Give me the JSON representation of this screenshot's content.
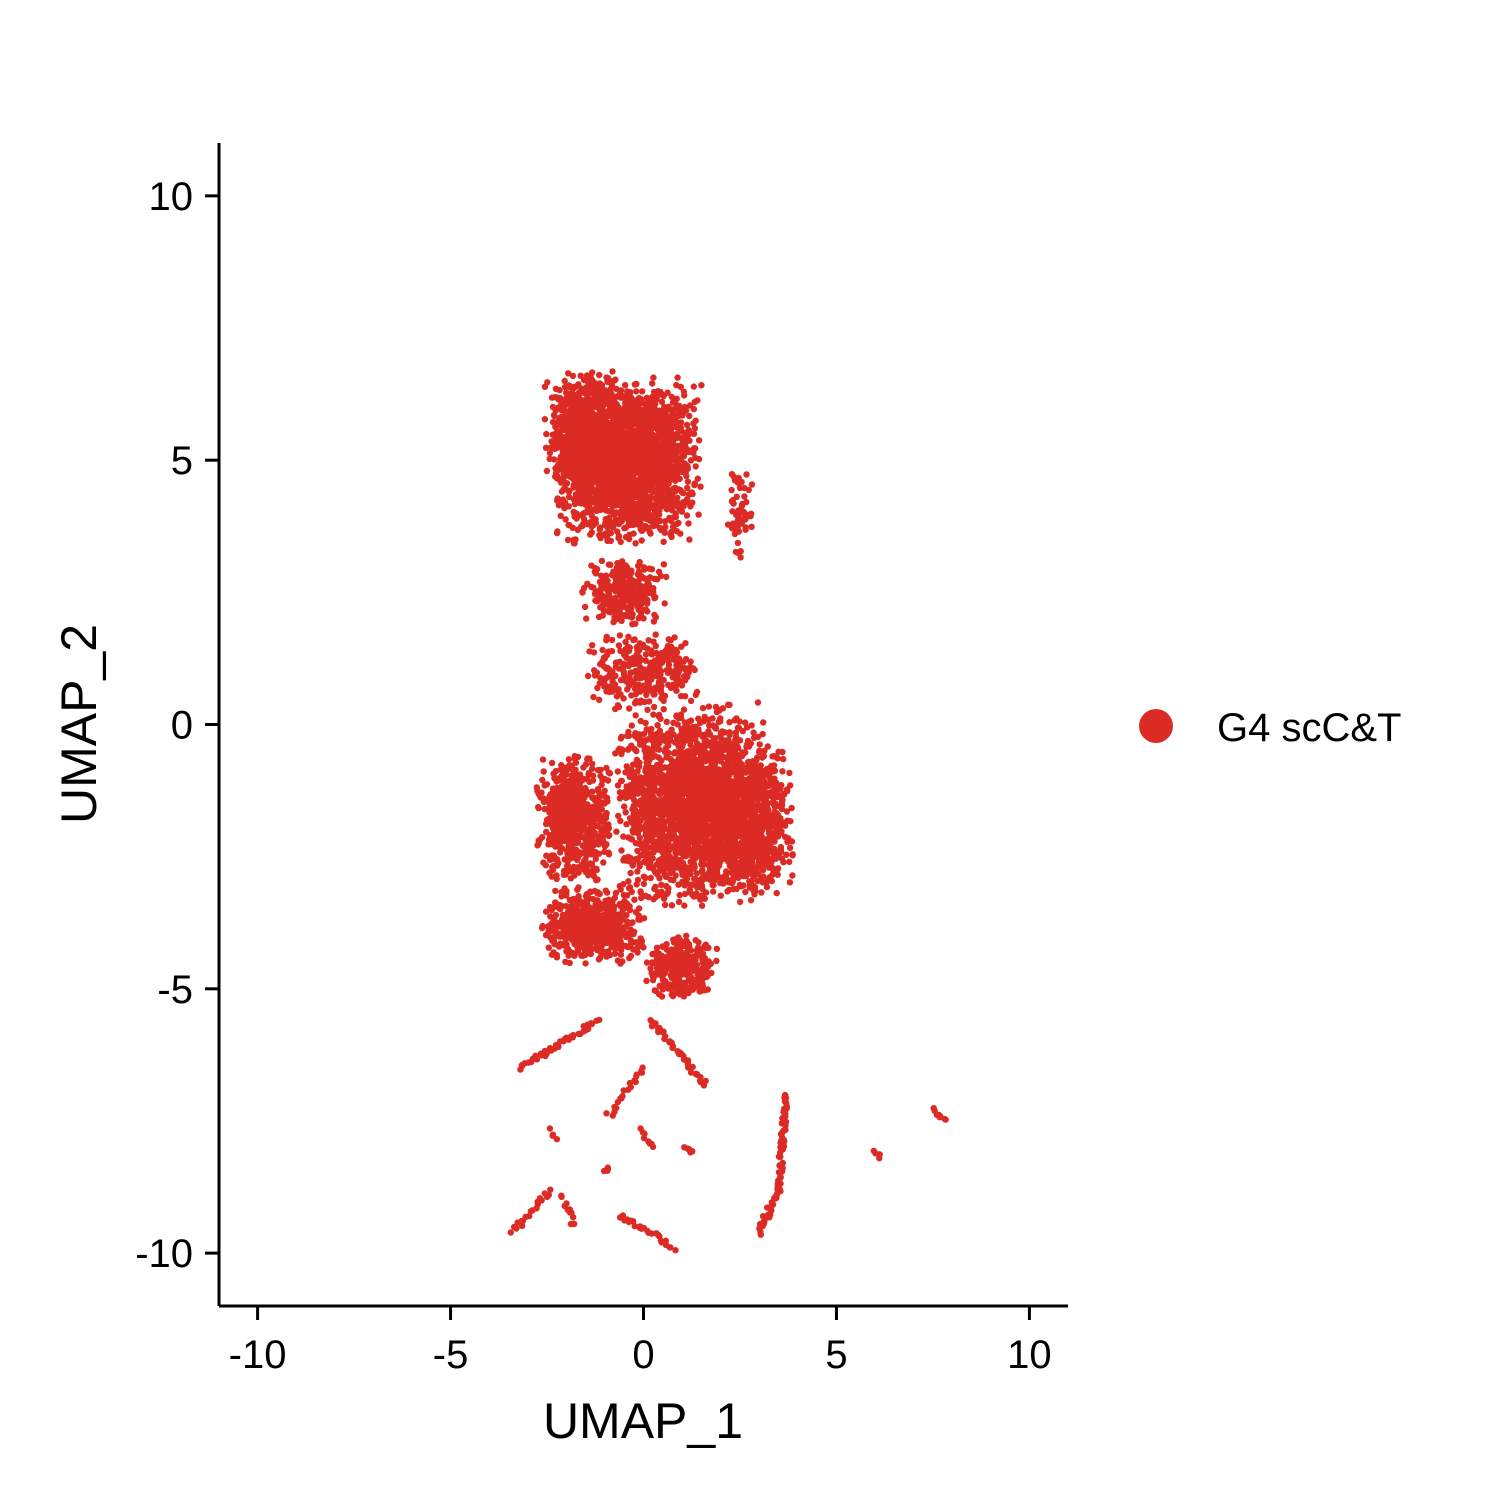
{
  "chart_data": {
    "type": "scatter",
    "title": "",
    "xlabel": "UMAP_1",
    "ylabel": "UMAP_2",
    "xlim": [
      -11,
      11
    ],
    "ylim": [
      -11,
      11
    ],
    "xticks": [
      -10,
      -5,
      0,
      5,
      10
    ],
    "yticks": [
      -10,
      -5,
      0,
      5,
      10
    ],
    "xtick_labels": [
      "-10",
      "-5",
      "0",
      "5",
      "10"
    ],
    "ytick_labels": [
      "-10",
      "-5",
      "0",
      "5",
      "10"
    ],
    "grid": false,
    "legend_position": "right",
    "point_color": "#dc2b25",
    "series": [
      {
        "name": "G4 scC&T",
        "clusters": [
          {
            "center": [
              -0.4,
              5.0
            ],
            "spread": [
              1.6,
              1.3
            ],
            "n": 2200
          },
          {
            "center": [
              -1.6,
              5.6
            ],
            "spread": [
              0.8,
              0.9
            ],
            "n": 500
          },
          {
            "center": [
              -0.5,
              2.5
            ],
            "spread": [
              0.9,
              0.5
            ],
            "n": 300
          },
          {
            "center": [
              0.0,
              1.0
            ],
            "spread": [
              1.3,
              0.6
            ],
            "n": 300
          },
          {
            "center": [
              -1.8,
              -1.8
            ],
            "spread": [
              0.8,
              1.0
            ],
            "n": 700
          },
          {
            "center": [
              1.2,
              -1.5
            ],
            "spread": [
              1.6,
              1.6
            ],
            "n": 2000
          },
          {
            "center": [
              2.8,
              -1.8
            ],
            "spread": [
              0.9,
              1.2
            ],
            "n": 800
          },
          {
            "center": [
              -1.3,
              -3.8
            ],
            "spread": [
              1.1,
              0.6
            ],
            "n": 600
          },
          {
            "center": [
              1.0,
              -4.6
            ],
            "spread": [
              0.8,
              0.5
            ],
            "n": 300
          },
          {
            "center": [
              2.5,
              4.0
            ],
            "spread": [
              0.3,
              0.7
            ],
            "n": 60
          }
        ],
        "strands": [
          {
            "from": [
              -3.2,
              -6.5
            ],
            "to": [
              -1.2,
              -5.6
            ],
            "n": 40
          },
          {
            "from": [
              0.2,
              -5.6
            ],
            "to": [
              1.6,
              -6.8
            ],
            "n": 40
          },
          {
            "from": [
              -0.9,
              -7.4
            ],
            "to": [
              0.0,
              -6.5
            ],
            "n": 20
          },
          {
            "from": [
              3.7,
              -7.0
            ],
            "to": [
              3.5,
              -8.8
            ],
            "n": 50
          },
          {
            "from": [
              3.5,
              -8.8
            ],
            "to": [
              3.0,
              -9.6
            ],
            "n": 30
          },
          {
            "from": [
              -0.6,
              -9.3
            ],
            "to": [
              0.8,
              -9.9
            ],
            "n": 25
          },
          {
            "from": [
              -3.4,
              -9.6
            ],
            "to": [
              -2.4,
              -8.8
            ],
            "n": 20
          },
          {
            "from": [
              -2.1,
              -8.9
            ],
            "to": [
              -1.8,
              -9.5
            ],
            "n": 12
          },
          {
            "from": [
              7.5,
              -7.3
            ],
            "to": [
              7.8,
              -7.5
            ],
            "n": 10
          },
          {
            "from": [
              6.0,
              -8.1
            ],
            "to": [
              6.1,
              -8.2
            ],
            "n": 5
          },
          {
            "from": [
              -0.1,
              -7.7
            ],
            "to": [
              0.3,
              -8.0
            ],
            "n": 8
          },
          {
            "from": [
              1.1,
              -8.0
            ],
            "to": [
              1.3,
              -8.1
            ],
            "n": 6
          },
          {
            "from": [
              -1.0,
              -8.4
            ],
            "to": [
              -0.9,
              -8.4
            ],
            "n": 4
          },
          {
            "from": [
              -2.4,
              -7.7
            ],
            "to": [
              -2.3,
              -7.8
            ],
            "n": 4
          }
        ]
      }
    ]
  }
}
